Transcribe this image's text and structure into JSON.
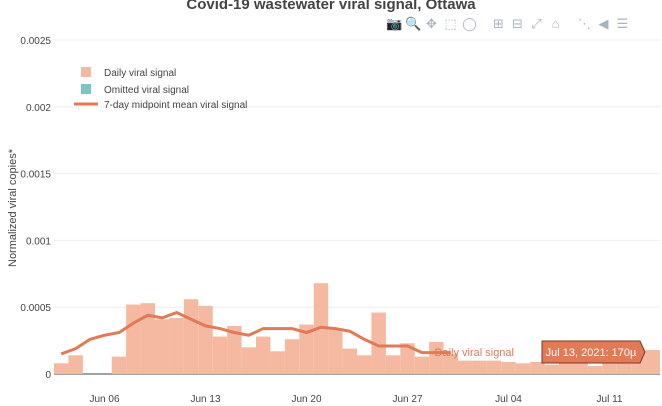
{
  "title": "Covid-19 wastewater viral signal, Ottawa",
  "modebar": {
    "icons": [
      "camera-icon",
      "zoom-icon",
      "pan-icon",
      "box-select-icon",
      "lasso-select-icon",
      "zoom-in-icon",
      "zoom-out-icon",
      "autoscale-icon",
      "home-icon",
      "spike-lines-icon",
      "hover-closest-icon",
      "hover-compare-icon"
    ]
  },
  "hover": {
    "series_name": "Daily viral signal",
    "value_text": "Jul 13, 2021: 170µ"
  },
  "colors": {
    "bars": "#f4b9a0",
    "omitted": "#7fc4c4",
    "line": "#e07a57",
    "hover_box": "#e07a57",
    "grid": "#eeeeee"
  },
  "chart_data": {
    "type": "bar",
    "title": "Covid-19 wastewater viral signal, Ottawa",
    "ylabel": "Normalized viral copies*",
    "xlabel": "",
    "ylim": [
      0,
      0.0025
    ],
    "yticks": [
      0,
      0.0005,
      0.001,
      0.0015,
      0.002,
      0.0025
    ],
    "ytick_labels": [
      "0",
      "0.0005",
      "0.001",
      "0.0015",
      "0.002",
      "0.0025"
    ],
    "xticks": [
      "2021-06-06",
      "2021-06-13",
      "2021-06-20",
      "2021-06-27",
      "2021-07-04",
      "2021-07-11"
    ],
    "xtick_labels": [
      "Jun 06",
      "Jun 13",
      "Jun 20",
      "Jun 27",
      "Jul 04",
      "Jul 11"
    ],
    "legend": {
      "position": "top-left",
      "entries": [
        "Daily viral signal",
        "Omitted viral signal",
        "7-day midpoint mean viral signal"
      ]
    },
    "series": [
      {
        "name": "Daily viral signal",
        "kind": "bar",
        "x": [
          "2021-06-03",
          "2021-06-04",
          "2021-06-05",
          "2021-06-06",
          "2021-06-07",
          "2021-06-08",
          "2021-06-09",
          "2021-06-10",
          "2021-06-11",
          "2021-06-12",
          "2021-06-13",
          "2021-06-14",
          "2021-06-15",
          "2021-06-16",
          "2021-06-17",
          "2021-06-18",
          "2021-06-19",
          "2021-06-20",
          "2021-06-21",
          "2021-06-22",
          "2021-06-23",
          "2021-06-24",
          "2021-06-25",
          "2021-06-26",
          "2021-06-27",
          "2021-06-28",
          "2021-06-29",
          "2021-06-30",
          "2021-07-01",
          "2021-07-02",
          "2021-07-03",
          "2021-07-04",
          "2021-07-05",
          "2021-07-06",
          "2021-07-07",
          "2021-07-08",
          "2021-07-09",
          "2021-07-10",
          "2021-07-11",
          "2021-07-12",
          "2021-07-13",
          "2021-07-14"
        ],
        "values": [
          8e-05,
          0.00014,
          0.0,
          0.0,
          0.00013,
          0.00052,
          0.00053,
          0.00041,
          0.00042,
          0.00056,
          0.00051,
          0.00028,
          0.00036,
          0.0002,
          0.00028,
          0.00017,
          0.00026,
          0.00037,
          0.00068,
          0.00034,
          0.00019,
          0.00014,
          0.00046,
          0.00014,
          0.00023,
          0.00013,
          0.00024,
          0.00015,
          0.0001,
          0.0001,
          0.0001,
          9e-05,
          8e-05,
          9e-05,
          7e-05,
          9e-05,
          0.00012,
          6e-05,
          9e-05,
          0.0001,
          0.00017,
          0.00018
        ]
      },
      {
        "name": "7-day midpoint mean viral signal",
        "kind": "line",
        "x": [
          "2021-06-03",
          "2021-06-04",
          "2021-06-05",
          "2021-06-06",
          "2021-06-07",
          "2021-06-08",
          "2021-06-09",
          "2021-06-10",
          "2021-06-11",
          "2021-06-12",
          "2021-06-13",
          "2021-06-14",
          "2021-06-15",
          "2021-06-16",
          "2021-06-17",
          "2021-06-18",
          "2021-06-19",
          "2021-06-20",
          "2021-06-21",
          "2021-06-22",
          "2021-06-23",
          "2021-06-24",
          "2021-06-25",
          "2021-06-26",
          "2021-06-27",
          "2021-06-28",
          "2021-06-29",
          "2021-06-30"
        ],
        "values": [
          0.00015,
          0.00019,
          0.00026,
          0.00029,
          0.00031,
          0.00038,
          0.00044,
          0.00042,
          0.00046,
          0.00041,
          0.00036,
          0.00034,
          0.00031,
          0.00029,
          0.00034,
          0.00034,
          0.00034,
          0.00031,
          0.00035,
          0.00034,
          0.00032,
          0.00026,
          0.00021,
          0.00021,
          0.00021,
          0.00016,
          0.00016,
          0.00016
        ]
      }
    ]
  }
}
